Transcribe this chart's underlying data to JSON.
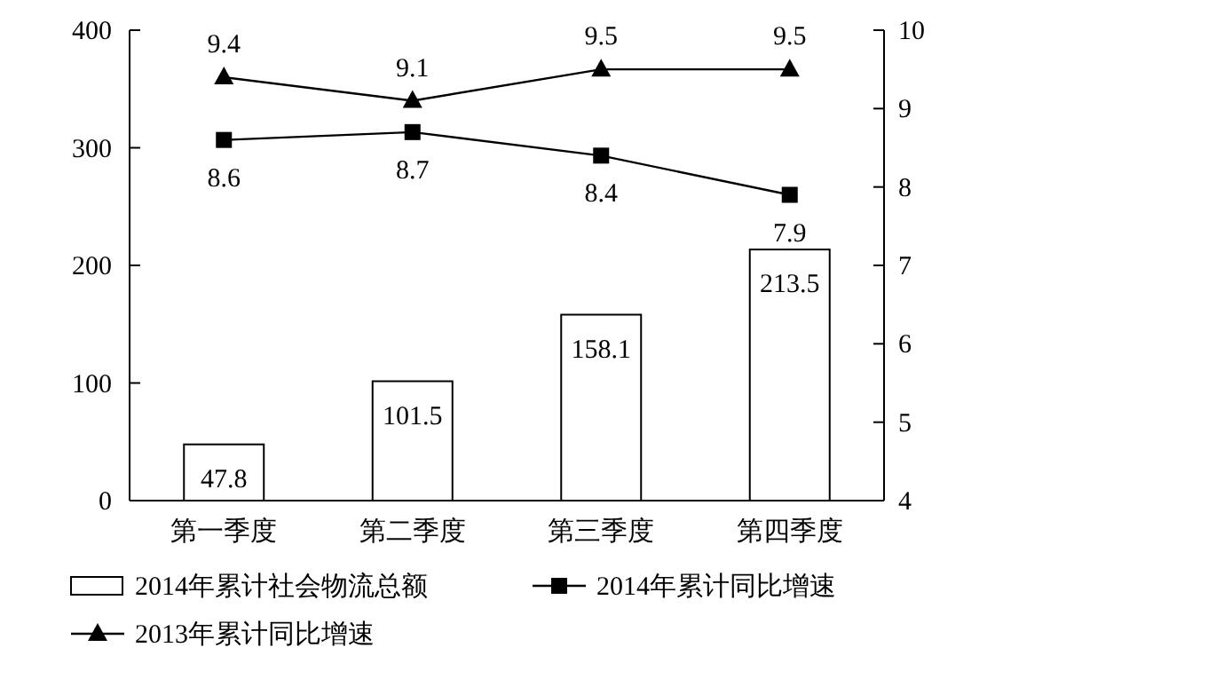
{
  "chart_data": {
    "type": "bar",
    "categories": [
      "第一季度",
      "第二季度",
      "第三季度",
      "第四季度"
    ],
    "series": [
      {
        "name": "2014年累计社会物流总额",
        "color": "#ffffff",
        "values": [
          47.8,
          101.5,
          158.1,
          213.5
        ]
      },
      {
        "name": "2014年累计同比增速",
        "type": "line",
        "axis": "y2",
        "marker": "square",
        "color": "#000000",
        "values": [
          8.6,
          8.7,
          8.4,
          7.9
        ]
      },
      {
        "name": "2013年累计同比增速",
        "type": "line",
        "axis": "y2",
        "marker": "triangle",
        "color": "#000000",
        "values": [
          9.4,
          9.1,
          9.5,
          9.5
        ]
      }
    ],
    "ylim": [
      0,
      400
    ],
    "yticks": [
      0,
      100,
      200,
      300,
      400
    ],
    "y2lim": [
      4,
      10
    ],
    "y2ticks": [
      4,
      5,
      6,
      7,
      8,
      9,
      10
    ],
    "data_labels": true,
    "legend": "bottom",
    "grid": false
  }
}
